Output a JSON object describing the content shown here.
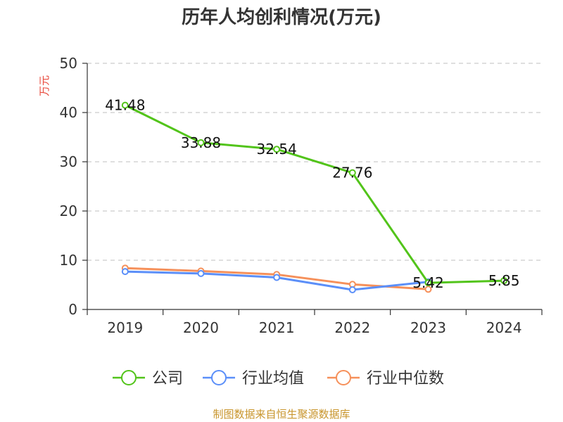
{
  "chart_data": {
    "type": "line",
    "title": "历年人均创利情况(万元)",
    "ylabel": "万元",
    "xlabel": "",
    "categories": [
      "2019",
      "2020",
      "2021",
      "2022",
      "2023",
      "2024"
    ],
    "ylim": [
      0,
      50
    ],
    "yticks": [
      0,
      10,
      20,
      30,
      40,
      50
    ],
    "grid": true,
    "legend_position": "bottom",
    "series": [
      {
        "name": "公司",
        "color": "#52c41a",
        "values": [
          41.48,
          33.88,
          32.54,
          27.76,
          5.42,
          5.85
        ],
        "labels": [
          "41.48",
          "33.88",
          "32.54",
          "27.76",
          "5.42",
          "5.85"
        ]
      },
      {
        "name": "行业均值",
        "color": "#5b8ff9",
        "values": [
          7.7,
          7.3,
          6.5,
          4.0,
          5.6,
          null
        ]
      },
      {
        "name": "行业中位数",
        "color": "#f6905a",
        "values": [
          8.4,
          7.8,
          7.1,
          5.1,
          4.1,
          null
        ]
      }
    ]
  },
  "source": "制图数据来自恒生聚源数据库",
  "colors": {
    "ylabel": "#e8483b",
    "source": "#c8952c",
    "axis": "#333333",
    "grid": "#cccccc"
  }
}
